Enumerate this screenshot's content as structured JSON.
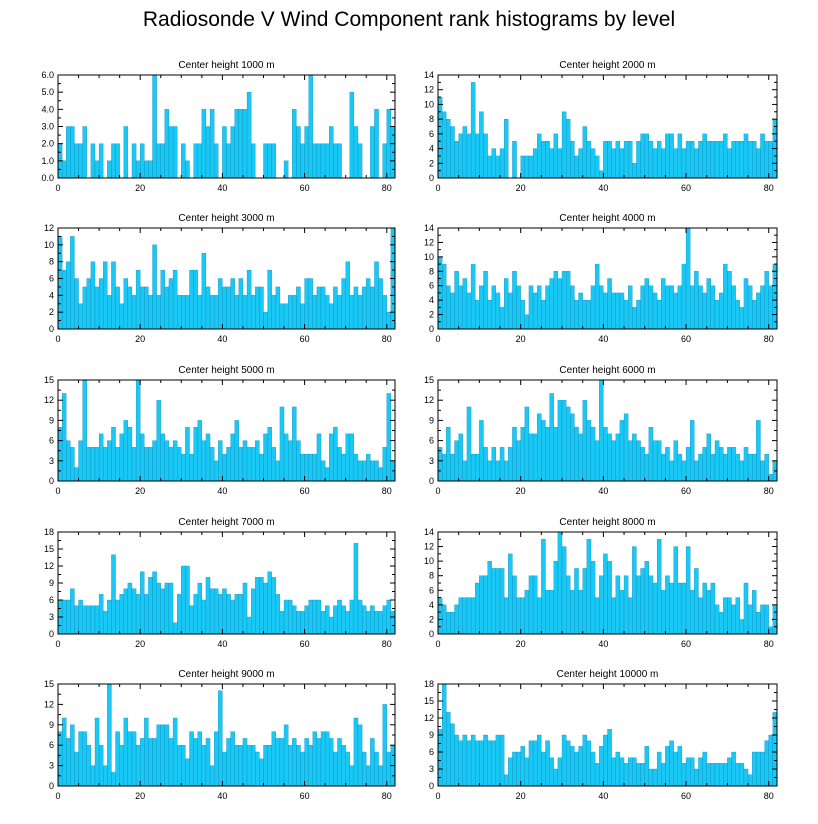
{
  "title": "Radiosonde V Wind Component rank histograms by level",
  "colors": {
    "bar": "#19C8F5",
    "bar_edge": "#0A7FAE",
    "frame": "#000000"
  },
  "chart_data": [
    {
      "type": "bar",
      "title": "Center height 1000 m",
      "xlim": [
        0,
        82
      ],
      "xticks": [
        0,
        20,
        40,
        60,
        80
      ],
      "ylim": [
        0,
        6
      ],
      "yticks": [
        0,
        1,
        2,
        3,
        4,
        5,
        6
      ],
      "ytick_labels": [
        "0.0",
        "1.0",
        "2.0",
        "3.0",
        "4.0",
        "5.0",
        "6.0"
      ],
      "values": [
        2,
        1,
        3,
        3,
        2,
        2,
        3,
        0,
        2,
        1,
        2,
        0,
        1,
        2,
        2,
        0,
        3,
        0,
        2,
        1,
        2,
        1,
        1,
        6,
        2,
        2,
        4,
        3,
        3,
        0,
        2,
        1,
        0,
        2,
        2,
        4,
        3,
        4,
        2,
        0,
        3,
        2,
        3,
        4,
        4,
        4,
        5,
        2,
        0,
        0,
        2,
        2,
        2,
        0,
        0,
        1,
        0,
        4,
        3,
        2,
        3,
        6,
        2,
        2,
        2,
        2,
        3,
        2,
        2,
        0,
        0,
        5,
        3,
        2,
        0,
        0,
        3,
        4,
        0,
        2,
        4,
        3
      ]
    },
    {
      "type": "bar",
      "title": "Center height 2000 m",
      "xlim": [
        0,
        82
      ],
      "xticks": [
        0,
        20,
        40,
        60,
        80
      ],
      "ylim": [
        0,
        14
      ],
      "yticks": [
        0,
        2,
        4,
        6,
        8,
        10,
        12,
        14
      ],
      "ytick_labels": [
        "0",
        "2",
        "4",
        "6",
        "8",
        "10",
        "12",
        "14"
      ],
      "values": [
        11,
        9,
        8,
        7,
        5,
        6,
        7,
        6,
        13,
        6,
        9,
        6,
        3,
        4,
        3,
        4,
        8,
        0,
        5,
        0,
        3,
        3,
        3,
        4,
        6,
        5,
        5,
        4,
        6,
        4,
        9,
        8,
        5,
        3,
        4,
        7,
        5,
        4,
        3,
        1,
        5,
        5,
        4,
        5,
        4,
        5,
        5,
        2,
        5,
        6,
        6,
        5,
        4,
        5,
        4,
        6,
        6,
        4,
        6,
        4,
        5,
        5,
        4,
        5,
        6,
        5,
        5,
        5,
        5,
        6,
        4,
        5,
        5,
        5,
        6,
        5,
        5,
        4,
        6,
        5,
        5,
        8
      ]
    },
    {
      "type": "bar",
      "title": "Center height 3000 m",
      "xlim": [
        0,
        82
      ],
      "xticks": [
        0,
        20,
        40,
        60,
        80
      ],
      "ylim": [
        0,
        12
      ],
      "yticks": [
        0,
        2,
        4,
        6,
        8,
        10,
        12
      ],
      "ytick_labels": [
        "0",
        "2",
        "4",
        "6",
        "8",
        "10",
        "12"
      ],
      "values": [
        11,
        7,
        8,
        11,
        6,
        3,
        5,
        6,
        8,
        5,
        6,
        8,
        4,
        8,
        5,
        3,
        6,
        5,
        4,
        7,
        5,
        5,
        4,
        10,
        4,
        7,
        5,
        6,
        7,
        4,
        4,
        4,
        7,
        7,
        4,
        9,
        5,
        4,
        4,
        6,
        5,
        5,
        6,
        4,
        6,
        4,
        7,
        4,
        5,
        5,
        2,
        7,
        4,
        5,
        3,
        3,
        4,
        4,
        5,
        3,
        6,
        6,
        4,
        5,
        5,
        4,
        3,
        5,
        4,
        6,
        8,
        4,
        5,
        4,
        5,
        6,
        5,
        8,
        6,
        4,
        2,
        12
      ]
    },
    {
      "type": "bar",
      "title": "Center height 4000 m",
      "xlim": [
        0,
        82
      ],
      "xticks": [
        0,
        20,
        40,
        60,
        80
      ],
      "ylim": [
        0,
        14
      ],
      "yticks": [
        0,
        2,
        4,
        6,
        8,
        10,
        12,
        14
      ],
      "ytick_labels": [
        "0",
        "2",
        "4",
        "6",
        "8",
        "10",
        "12",
        "14"
      ],
      "values": [
        10,
        9,
        6,
        5,
        8,
        6,
        7,
        5,
        9,
        4,
        6,
        8,
        4,
        6,
        5,
        3,
        7,
        5,
        8,
        6,
        4,
        2,
        6,
        5,
        6,
        4,
        6,
        7,
        8,
        7,
        8,
        8,
        6,
        4,
        5,
        4,
        4,
        6,
        9,
        6,
        5,
        7,
        5,
        5,
        5,
        4,
        6,
        3,
        4,
        6,
        7,
        6,
        5,
        4,
        7,
        6,
        6,
        5,
        6,
        9,
        14,
        6,
        8,
        6,
        5,
        7,
        6,
        4,
        5,
        9,
        8,
        6,
        4,
        3,
        7,
        6,
        4,
        5,
        6,
        8,
        6,
        9
      ]
    },
    {
      "type": "bar",
      "title": "Center height 5000 m",
      "xlim": [
        0,
        82
      ],
      "xticks": [
        0,
        20,
        40,
        60,
        80
      ],
      "ylim": [
        0,
        15
      ],
      "yticks": [
        0,
        3,
        6,
        9,
        12,
        15
      ],
      "ytick_labels": [
        "0",
        "3",
        "6",
        "9",
        "12",
        "15"
      ],
      "values": [
        8,
        13,
        6,
        5,
        2,
        6,
        15,
        5,
        5,
        5,
        7,
        5,
        6,
        8,
        5,
        7,
        9,
        8,
        5,
        15,
        7,
        5,
        5,
        6,
        12,
        7,
        6,
        5,
        6,
        5,
        4,
        8,
        4,
        8,
        9,
        6,
        7,
        5,
        3,
        6,
        4,
        5,
        7,
        9,
        5,
        6,
        5,
        5,
        6,
        4,
        7,
        8,
        5,
        3,
        11,
        7,
        6,
        11,
        6,
        4,
        4,
        4,
        4,
        7,
        3,
        2,
        7,
        8,
        5,
        4,
        7,
        7,
        4,
        3,
        3,
        4,
        3,
        3,
        2,
        5,
        13,
        3
      ]
    },
    {
      "type": "bar",
      "title": "Center height 6000 m",
      "xlim": [
        0,
        82
      ],
      "xticks": [
        0,
        20,
        40,
        60,
        80
      ],
      "ylim": [
        0,
        15
      ],
      "yticks": [
        0,
        3,
        6,
        9,
        12,
        15
      ],
      "ytick_labels": [
        "0",
        "3",
        "6",
        "9",
        "12",
        "15"
      ],
      "values": [
        5,
        4,
        8,
        4,
        6,
        7,
        3,
        11,
        4,
        4,
        9,
        5,
        3,
        5,
        3,
        5,
        3,
        5,
        8,
        6,
        8,
        11,
        7,
        7,
        10,
        9,
        8,
        13,
        8,
        12,
        12,
        11,
        10,
        8,
        7,
        12,
        9,
        8,
        6,
        15,
        8,
        7,
        6,
        7,
        9,
        10,
        6,
        7,
        6,
        5,
        4,
        8,
        6,
        6,
        4,
        5,
        3,
        6,
        4,
        3,
        5,
        9,
        3,
        4,
        5,
        7,
        4,
        6,
        5,
        4,
        5,
        5,
        4,
        3,
        5,
        4,
        4,
        9,
        3,
        4,
        1,
        3
      ]
    },
    {
      "type": "bar",
      "title": "Center height 7000 m",
      "xlim": [
        0,
        82
      ],
      "xticks": [
        0,
        20,
        40,
        60,
        80
      ],
      "ylim": [
        0,
        18
      ],
      "yticks": [
        0,
        3,
        6,
        9,
        12,
        15,
        18
      ],
      "ytick_labels": [
        "0",
        "3",
        "6",
        "9",
        "12",
        "15",
        "18"
      ],
      "values": [
        6,
        6,
        6,
        8,
        5,
        6,
        5,
        5,
        5,
        5,
        7,
        4,
        6,
        14,
        6,
        7,
        8,
        9,
        8,
        7,
        11,
        7,
        10,
        11,
        9,
        8,
        9,
        9,
        2,
        7,
        12,
        12,
        5,
        7,
        9,
        6,
        10,
        8,
        8,
        7,
        8,
        7,
        6,
        7,
        7,
        9,
        3,
        8,
        10,
        10,
        9,
        11,
        10,
        7,
        4,
        6,
        6,
        5,
        4,
        4,
        5,
        6,
        6,
        6,
        4,
        5,
        3,
        5,
        6,
        5,
        4,
        6,
        16,
        6,
        5,
        4,
        5,
        4,
        4,
        5,
        6,
        4
      ]
    },
    {
      "type": "bar",
      "title": "Center height 8000 m",
      "xlim": [
        0,
        82
      ],
      "xticks": [
        0,
        20,
        40,
        60,
        80
      ],
      "ylim": [
        0,
        14
      ],
      "yticks": [
        0,
        2,
        4,
        6,
        8,
        10,
        12,
        14
      ],
      "ytick_labels": [
        "0",
        "2",
        "4",
        "6",
        "8",
        "10",
        "12",
        "14"
      ],
      "values": [
        5,
        4,
        3,
        3,
        4,
        5,
        5,
        5,
        5,
        7,
        8,
        8,
        10,
        9,
        9,
        9,
        5,
        11,
        8,
        5,
        5,
        6,
        8,
        8,
        5,
        13,
        6,
        6,
        10,
        14,
        12,
        8,
        6,
        9,
        6,
        9,
        13,
        10,
        5,
        8,
        11,
        10,
        5,
        8,
        6,
        8,
        5,
        12,
        8,
        9,
        10,
        8,
        7,
        13,
        6,
        8,
        7,
        12,
        7,
        7,
        12,
        6,
        9,
        5,
        7,
        6,
        7,
        4,
        3,
        5,
        5,
        4,
        5,
        2,
        7,
        4,
        6,
        3,
        4,
        4,
        1,
        4
      ]
    },
    {
      "type": "bar",
      "title": "Center height 9000 m",
      "xlim": [
        0,
        82
      ],
      "xticks": [
        0,
        20,
        40,
        60,
        80
      ],
      "ylim": [
        0,
        15
      ],
      "yticks": [
        0,
        3,
        6,
        9,
        12,
        15
      ],
      "ytick_labels": [
        "0",
        "3",
        "6",
        "9",
        "12",
        "15"
      ],
      "values": [
        8,
        10,
        7,
        9,
        5,
        8,
        8,
        6,
        3,
        10,
        6,
        3,
        15,
        2,
        8,
        6,
        10,
        8,
        8,
        6,
        7,
        10,
        7,
        7,
        9,
        9,
        9,
        7,
        10,
        6,
        6,
        4,
        8,
        7,
        8,
        6,
        7,
        3,
        8,
        14,
        5,
        7,
        8,
        6,
        6,
        7,
        6,
        6,
        5,
        4,
        6,
        6,
        8,
        7,
        7,
        9,
        6,
        7,
        6,
        5,
        7,
        6,
        8,
        7,
        8,
        8,
        7,
        5,
        7,
        6,
        5,
        3,
        10,
        9,
        5,
        3,
        7,
        5,
        3,
        12,
        5,
        6
      ]
    },
    {
      "type": "bar",
      "title": "Center height 10000 m",
      "xlim": [
        0,
        82
      ],
      "xticks": [
        0,
        20,
        40,
        60,
        80
      ],
      "ylim": [
        0,
        18
      ],
      "yticks": [
        0,
        3,
        6,
        9,
        12,
        15,
        18
      ],
      "ytick_labels": [
        "0",
        "3",
        "6",
        "9",
        "12",
        "15",
        "18"
      ],
      "values": [
        10,
        18,
        13,
        11,
        9,
        8,
        9,
        8,
        9,
        8,
        8,
        9,
        8,
        8,
        9,
        9,
        2,
        5,
        6,
        6,
        7,
        5,
        8,
        8,
        9,
        6,
        8,
        5,
        3,
        5,
        9,
        8,
        7,
        6,
        7,
        9,
        8,
        6,
        4,
        7,
        9,
        10,
        5,
        6,
        5,
        4,
        5,
        5,
        4,
        4,
        7,
        3,
        3,
        6,
        4,
        7,
        8,
        6,
        7,
        4,
        5,
        5,
        3,
        5,
        6,
        4,
        4,
        4,
        4,
        4,
        5,
        6,
        4,
        4,
        3,
        2,
        6,
        6,
        6,
        8,
        9,
        13
      ]
    }
  ]
}
